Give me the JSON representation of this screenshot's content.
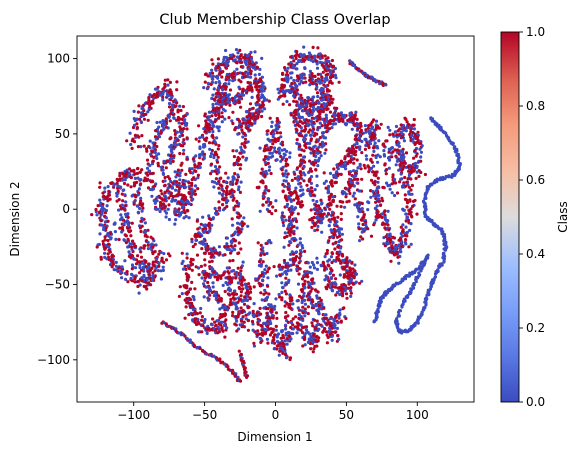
{
  "chart_data": {
    "type": "scatter",
    "title": "Club Membership Class Overlap",
    "xlabel": "Dimension 1",
    "ylabel": "Dimension 2",
    "xlim": [
      -140,
      140
    ],
    "ylim": [
      -128,
      115
    ],
    "xticks": [
      -100,
      -50,
      0,
      50,
      100
    ],
    "yticks": [
      -100,
      -50,
      0,
      50,
      100
    ],
    "xtick_labels": [
      "−100",
      "−50",
      "0",
      "50",
      "100"
    ],
    "ytick_labels": [
      "−100",
      "−50",
      "0",
      "50",
      "100"
    ],
    "grid": false,
    "colormap": "coolwarm",
    "color_low": "#3b4cc0",
    "color_high": "#b40426",
    "colorbar": {
      "label": "Class",
      "range": [
        0.0,
        1.0
      ],
      "ticks": [
        0.0,
        0.2,
        0.4,
        0.6,
        0.8,
        1.0
      ],
      "tick_labels": [
        "0.0",
        "0.2",
        "0.4",
        "0.6",
        "0.8",
        "1.0"
      ]
    },
    "series": [
      {
        "class": "mixed (0 and 1)",
        "shape": "blob",
        "points": [
          [
            -118,
            12
          ],
          [
            -124,
            0
          ],
          [
            -118,
            -15
          ],
          [
            -120,
            -28
          ],
          [
            -110,
            -40
          ],
          [
            -95,
            -50
          ],
          [
            -85,
            -45
          ],
          [
            -100,
            -30
          ],
          [
            -105,
            -15
          ],
          [
            -108,
            0
          ],
          [
            -110,
            20
          ],
          [
            -100,
            25
          ],
          [
            -98,
            5
          ],
          [
            -90,
            -20
          ],
          [
            -80,
            -35
          ],
          [
            -95,
            -40
          ]
        ]
      },
      {
        "class": "mixed (0 and 1)",
        "shape": "blob",
        "points": [
          [
            -100,
            45
          ],
          [
            -95,
            65
          ],
          [
            -85,
            75
          ],
          [
            -75,
            80
          ],
          [
            -70,
            65
          ],
          [
            -80,
            55
          ],
          [
            -88,
            40
          ],
          [
            -90,
            20
          ],
          [
            -80,
            0
          ],
          [
            -75,
            10
          ],
          [
            -78,
            30
          ],
          [
            -70,
            45
          ],
          [
            -65,
            60
          ],
          [
            -65,
            20
          ],
          [
            -70,
            -5
          ]
        ]
      },
      {
        "class": "mixed (0 and 1)",
        "shape": "blob",
        "points": [
          [
            -70,
            20
          ],
          [
            -65,
            0
          ],
          [
            -60,
            10
          ],
          [
            -55,
            30
          ],
          [
            -50,
            50
          ],
          [
            -45,
            60
          ],
          [
            -40,
            70
          ],
          [
            -35,
            75
          ],
          [
            -45,
            40
          ],
          [
            -40,
            20
          ],
          [
            -35,
            5
          ],
          [
            -50,
            -10
          ],
          [
            -55,
            -20
          ],
          [
            -45,
            -30
          ],
          [
            -30,
            -25
          ],
          [
            -25,
            -10
          ],
          [
            -30,
            15
          ],
          [
            -25,
            35
          ],
          [
            -20,
            55
          ],
          [
            -15,
            65
          ]
        ]
      },
      {
        "class": "mixed (0 and 1)",
        "shape": "blob",
        "points": [
          [
            -60,
            -35
          ],
          [
            -62,
            -55
          ],
          [
            -58,
            -70
          ],
          [
            -50,
            -78
          ],
          [
            -40,
            -80
          ],
          [
            -35,
            -65
          ],
          [
            -45,
            -55
          ],
          [
            -50,
            -40
          ],
          [
            -35,
            -45
          ],
          [
            -30,
            -60
          ],
          [
            -25,
            -75
          ],
          [
            -20,
            -55
          ],
          [
            -28,
            -40
          ],
          [
            -15,
            -70
          ],
          [
            -10,
            -85
          ],
          [
            -5,
            -70
          ]
        ]
      },
      {
        "class": "mixed (0 and 1)",
        "shape": "blob",
        "points": [
          [
            -45,
            85
          ],
          [
            -40,
            95
          ],
          [
            -30,
            100
          ],
          [
            -20,
            100
          ],
          [
            -15,
            95
          ],
          [
            -25,
            90
          ],
          [
            -35,
            85
          ],
          [
            -40,
            75
          ],
          [
            -30,
            70
          ],
          [
            -20,
            80
          ],
          [
            -12,
            85
          ],
          [
            -10,
            70
          ],
          [
            -18,
            60
          ],
          [
            -28,
            55
          ]
        ]
      },
      {
        "class": "mixed (0 and 1)",
        "shape": "blob",
        "points": [
          [
            -8,
            -25
          ],
          [
            -10,
            -45
          ],
          [
            -5,
            -65
          ],
          [
            0,
            -85
          ],
          [
            5,
            -95
          ],
          [
            10,
            -80
          ],
          [
            8,
            -60
          ],
          [
            5,
            -40
          ],
          [
            15,
            -30
          ],
          [
            20,
            -55
          ],
          [
            18,
            -75
          ],
          [
            25,
            -90
          ],
          [
            30,
            -80
          ],
          [
            28,
            -60
          ],
          [
            22,
            -40
          ],
          [
            35,
            -70
          ],
          [
            40,
            -85
          ],
          [
            45,
            -70
          ]
        ]
      },
      {
        "class": "mixed (0 and 1)",
        "shape": "blob",
        "points": [
          [
            -5,
            0
          ],
          [
            -8,
            20
          ],
          [
            -5,
            40
          ],
          [
            0,
            55
          ],
          [
            5,
            35
          ],
          [
            8,
            15
          ],
          [
            10,
            -5
          ],
          [
            12,
            -20
          ],
          [
            15,
            5
          ],
          [
            18,
            25
          ],
          [
            20,
            45
          ],
          [
            15,
            60
          ],
          [
            25,
            55
          ],
          [
            28,
            35
          ],
          [
            25,
            15
          ],
          [
            30,
            -10
          ],
          [
            32,
            0
          ]
        ]
      },
      {
        "class": "mixed (0 and 1)",
        "shape": "blob",
        "points": [
          [
            5,
            75
          ],
          [
            8,
            90
          ],
          [
            15,
            100
          ],
          [
            25,
            102
          ],
          [
            35,
            98
          ],
          [
            40,
            90
          ],
          [
            30,
            85
          ],
          [
            20,
            88
          ],
          [
            12,
            80
          ],
          [
            18,
            70
          ],
          [
            28,
            72
          ],
          [
            35,
            78
          ],
          [
            38,
            70
          ],
          [
            30,
            62
          ],
          [
            20,
            65
          ]
        ]
      },
      {
        "class": "mixed (0 and 1)",
        "shape": "blob",
        "points": [
          [
            30,
            40
          ],
          [
            35,
            55
          ],
          [
            45,
            62
          ],
          [
            55,
            60
          ],
          [
            60,
            50
          ],
          [
            55,
            38
          ],
          [
            48,
            30
          ],
          [
            40,
            20
          ],
          [
            38,
            0
          ],
          [
            42,
            -15
          ],
          [
            45,
            -30
          ],
          [
            50,
            -40
          ],
          [
            55,
            -45
          ],
          [
            48,
            -55
          ],
          [
            40,
            -50
          ],
          [
            35,
            -35
          ],
          [
            50,
            10
          ],
          [
            55,
            25
          ],
          [
            60,
            0
          ],
          [
            62,
            -15
          ]
        ]
      },
      {
        "class": "mixed (0 and 1)",
        "shape": "blob",
        "points": [
          [
            65,
            45
          ],
          [
            70,
            55
          ],
          [
            68,
            30
          ],
          [
            72,
            10
          ],
          [
            75,
            -5
          ],
          [
            80,
            -20
          ],
          [
            85,
            -30
          ],
          [
            90,
            -20
          ],
          [
            95,
            0
          ],
          [
            92,
            20
          ],
          [
            88,
            35
          ],
          [
            85,
            50
          ],
          [
            95,
            55
          ],
          [
            100,
            45
          ],
          [
            100,
            25
          ],
          [
            78,
            40
          ],
          [
            82,
            15
          ]
        ]
      },
      {
        "class": "mixed (0 and 1)",
        "shape": "strand",
        "points": [
          [
            52,
            98
          ],
          [
            58,
            93
          ],
          [
            65,
            88
          ],
          [
            72,
            85
          ],
          [
            78,
            82
          ]
        ]
      },
      {
        "class": "mixed (0 and 1)",
        "shape": "strand",
        "points": [
          [
            -80,
            -75
          ],
          [
            -70,
            -80
          ],
          [
            -60,
            -88
          ],
          [
            -50,
            -95
          ],
          [
            -40,
            -100
          ],
          [
            -30,
            -108
          ],
          [
            -25,
            -115
          ]
        ]
      },
      {
        "class": "mixed (0 and 1)",
        "shape": "strand",
        "points": [
          [
            -25,
            -95
          ],
          [
            -22,
            -105
          ],
          [
            -20,
            -112
          ]
        ]
      },
      {
        "class": 0,
        "shape": "strand",
        "points": [
          [
            110,
            60
          ],
          [
            115,
            55
          ],
          [
            122,
            48
          ],
          [
            128,
            38
          ],
          [
            130,
            28
          ],
          [
            125,
            22
          ],
          [
            115,
            20
          ],
          [
            108,
            15
          ],
          [
            105,
            5
          ],
          [
            106,
            -5
          ],
          [
            112,
            -10
          ],
          [
            118,
            -15
          ],
          [
            120,
            -25
          ],
          [
            118,
            -35
          ],
          [
            112,
            -45
          ],
          [
            108,
            -55
          ],
          [
            105,
            -65
          ],
          [
            100,
            -75
          ],
          [
            95,
            -80
          ],
          [
            88,
            -82
          ],
          [
            85,
            -75
          ],
          [
            90,
            -62
          ],
          [
            95,
            -55
          ],
          [
            100,
            -45
          ],
          [
            108,
            -30
          ]
        ]
      },
      {
        "class": 0,
        "shape": "strand",
        "points": [
          [
            108,
            -30
          ],
          [
            100,
            -40
          ],
          [
            92,
            -45
          ],
          [
            85,
            -50
          ],
          [
            78,
            -55
          ],
          [
            74,
            -60
          ],
          [
            72,
            -68
          ],
          [
            70,
            -75
          ]
        ]
      }
    ]
  }
}
